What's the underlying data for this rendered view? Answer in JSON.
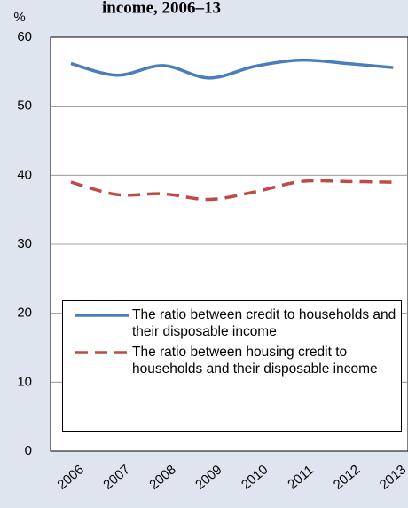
{
  "chart_data": {
    "type": "line",
    "title": "income, 2006–13",
    "y_label": "%",
    "categories": [
      "2006",
      "2007",
      "2008",
      "2009",
      "2010",
      "2011",
      "2012",
      "2013"
    ],
    "series": [
      {
        "name": "The ratio between credit to households and their disposable income",
        "color": "#4a7ebb",
        "dash": false,
        "values": [
          56.2,
          54.5,
          55.9,
          54.1,
          55.8,
          56.7,
          56.2,
          55.6
        ]
      },
      {
        "name": "The ratio between housing credit to households and their disposable income",
        "color": "#be4b48",
        "dash": true,
        "values": [
          39.0,
          37.2,
          37.3,
          36.5,
          37.6,
          39.1,
          39.1,
          39.0
        ]
      }
    ],
    "ylim": [
      0,
      60
    ],
    "yticks": [
      0,
      10,
      20,
      30,
      40,
      50,
      60
    ],
    "grid": true
  }
}
